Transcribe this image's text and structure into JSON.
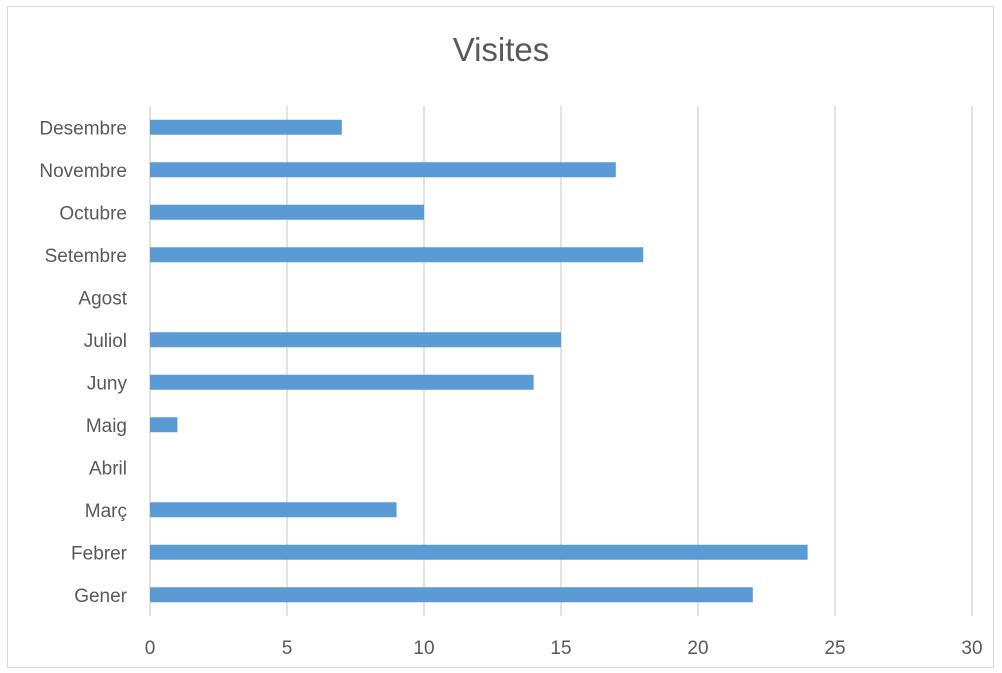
{
  "chart_data": {
    "type": "bar",
    "orientation": "horizontal",
    "title": "Visites",
    "categories": [
      "Gener",
      "Febrer",
      "Març",
      "Abril",
      "Maig",
      "Juny",
      "Juliol",
      "Agost",
      "Setembre",
      "Octubre",
      "Novembre",
      "Desembre"
    ],
    "values": [
      22,
      24,
      9,
      0,
      1,
      14,
      15,
      0,
      18,
      10,
      17,
      7
    ],
    "xlim": [
      0,
      30
    ],
    "xticks": [
      "0",
      "5",
      "10",
      "15",
      "20",
      "25",
      "30"
    ],
    "grid": true,
    "legend": "none",
    "bar_color": "#5b9bd5",
    "grid_color": "#d9d9d9",
    "text_color": "#595959"
  }
}
